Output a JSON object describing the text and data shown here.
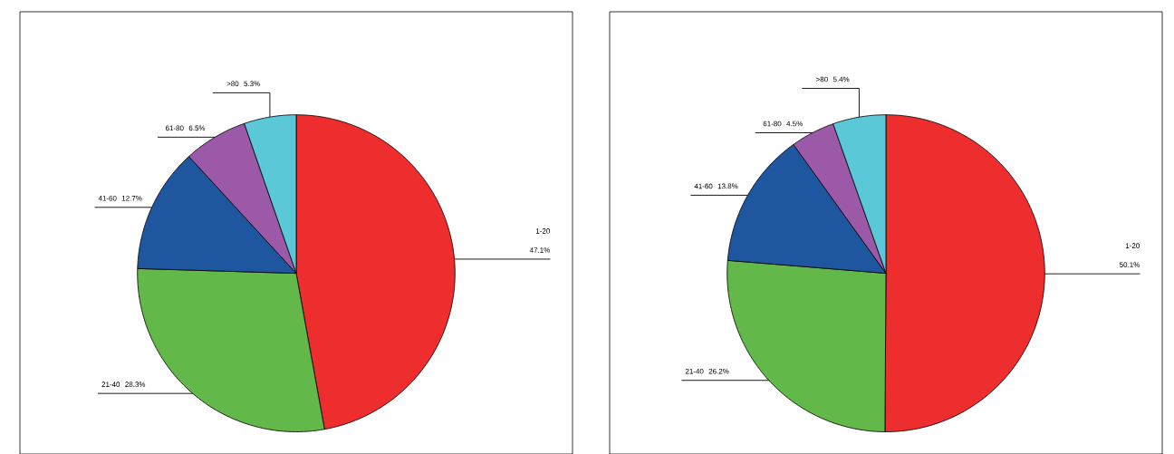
{
  "chart_data": [
    {
      "type": "pie",
      "categories": [
        "1-20",
        "21-40",
        "41-60",
        "61-80",
        ">80"
      ],
      "values": [
        47.1,
        28.3,
        12.7,
        6.5,
        5.3
      ],
      "colors": [
        "#ee2e2e",
        "#62b848",
        "#1e56a0",
        "#9b59a8",
        "#5bc8d8"
      ],
      "value_labels": [
        "47.1%",
        "28.3%",
        "12.7%",
        "6.5%",
        "5.3%"
      ]
    },
    {
      "type": "pie",
      "categories": [
        "1-20",
        "21-40",
        "41-60",
        "61-80",
        ">80"
      ],
      "values": [
        50.1,
        26.2,
        13.8,
        4.5,
        5.4
      ],
      "colors": [
        "#ee2e2e",
        "#62b848",
        "#1e56a0",
        "#9b59a8",
        "#5bc8d8"
      ],
      "value_labels": [
        "50.1%",
        "26.2%",
        "13.8%",
        "4.5%",
        "5.4%"
      ]
    }
  ]
}
